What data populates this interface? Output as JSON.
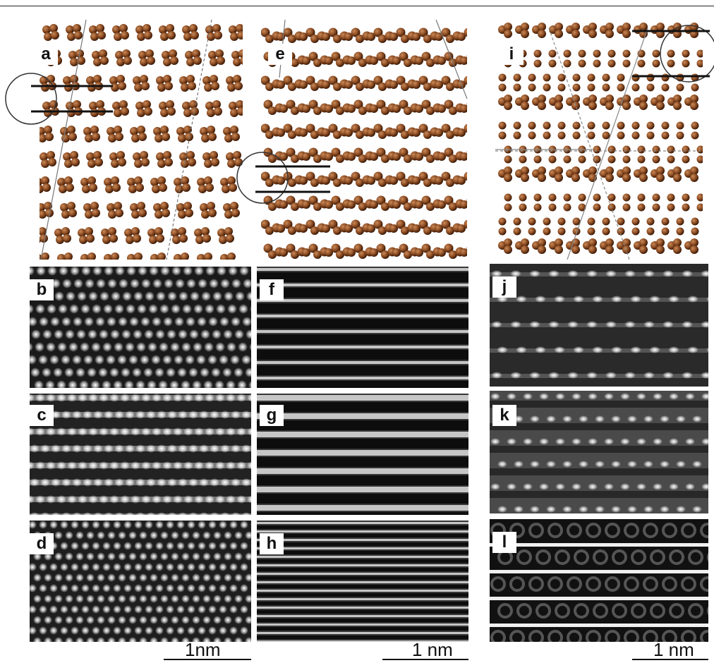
{
  "figure": {
    "panels": [
      {
        "id": "atom-a",
        "label": "a",
        "kind": "atoms",
        "style": "cluster4",
        "col": 0
      },
      {
        "id": "atom-e",
        "label": "e",
        "kind": "atoms",
        "style": "rowdense",
        "col": 1
      },
      {
        "id": "atom-i",
        "label": "i",
        "kind": "atoms",
        "style": "mixed",
        "col": 2
      },
      {
        "id": "sim-b",
        "label": "b",
        "kind": "sim",
        "style": "tilted-dots"
      },
      {
        "id": "sim-c",
        "label": "c",
        "kind": "sim",
        "style": "stripe-dots"
      },
      {
        "id": "sim-d",
        "label": "d",
        "kind": "sim",
        "style": "checker"
      },
      {
        "id": "sim-f",
        "label": "f",
        "kind": "sim",
        "style": "lines"
      },
      {
        "id": "sim-g",
        "label": "g",
        "kind": "sim",
        "style": "lines-wide"
      },
      {
        "id": "sim-h",
        "label": "h",
        "kind": "sim",
        "style": "lines-fine"
      },
      {
        "id": "sim-j",
        "label": "j",
        "kind": "sim",
        "style": "sparse-dots"
      },
      {
        "id": "sim-k",
        "label": "k",
        "kind": "sim",
        "style": "grey-dots"
      },
      {
        "id": "sim-l",
        "label": "l",
        "kind": "sim",
        "style": "dark-rings"
      }
    ],
    "scalebars": [
      "1nm",
      "1 nm",
      "1 nm"
    ],
    "colors": {
      "atom": "#8a4a20",
      "atom_highlight": "#c98a5a",
      "atom_shadow": "#3a1a08"
    }
  }
}
